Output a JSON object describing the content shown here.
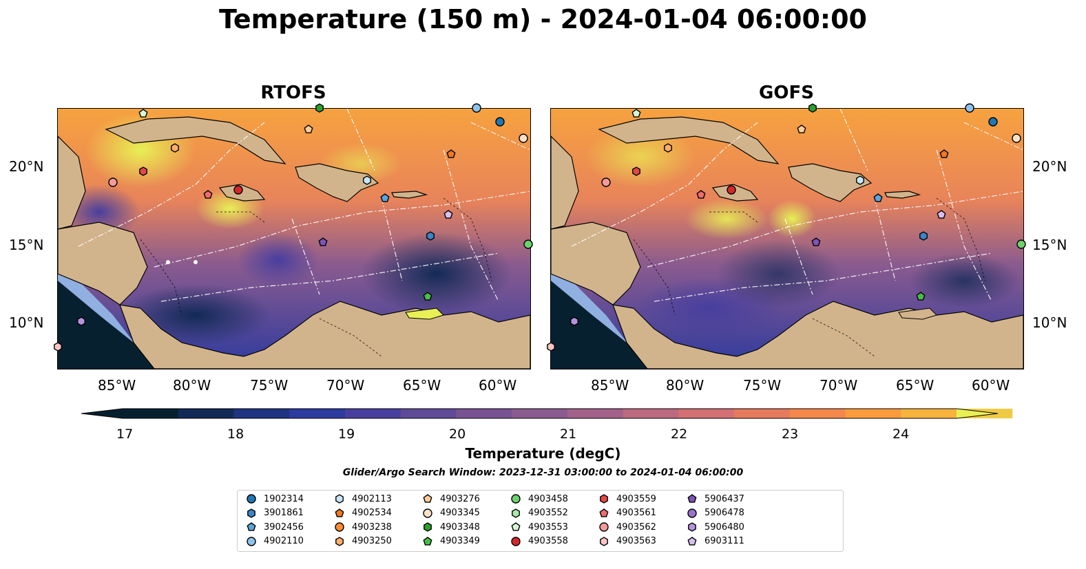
{
  "title": "Temperature (150 m) - 2024-01-04 06:00:00",
  "panels": [
    {
      "title": "RTOFS"
    },
    {
      "title": "GOFS"
    }
  ],
  "lon_ticks": [
    "85°W",
    "80°W",
    "75°W",
    "70°W",
    "65°W",
    "60°W"
  ],
  "lat_ticks": [
    "20°N",
    "15°N",
    "10°N"
  ],
  "colorbar": {
    "ticks": [
      "17",
      "18",
      "19",
      "20",
      "21",
      "22",
      "23",
      "24"
    ],
    "label": "Temperature (degC)",
    "colors": [
      "#07202f",
      "#122a56",
      "#1e3382",
      "#2d3a9e",
      "#473f9e",
      "#5f4a98",
      "#775393",
      "#8a5b8f",
      "#a2628a",
      "#bb6a80",
      "#d27073",
      "#e57b5d",
      "#f3884a",
      "#fa9b3d",
      "#f7b33e",
      "#efcb45",
      "#e8f055"
    ]
  },
  "search_window": "Glider/Argo Search Window: 2023-12-31 03:00:00 to 2024-01-04 06:00:00",
  "colors": {
    "land": "#d2b48c",
    "shelf": "#8fb0e0",
    "deep": "#07202f"
  },
  "legend": [
    {
      "id": "1902314",
      "color": "#1f77b4",
      "shape": "circle"
    },
    {
      "id": "3901861",
      "color": "#3a86c8",
      "shape": "hexagon"
    },
    {
      "id": "3902456",
      "color": "#5aa5dc",
      "shape": "pentagon"
    },
    {
      "id": "4902110",
      "color": "#8cc3ef",
      "shape": "circle"
    },
    {
      "id": "4902113",
      "color": "#c9e6fb",
      "shape": "hexagon"
    },
    {
      "id": "4902534",
      "color": "#f07820",
      "shape": "pentagon"
    },
    {
      "id": "4903238",
      "color": "#ff8c2e",
      "shape": "circle"
    },
    {
      "id": "4903250",
      "color": "#ffae6b",
      "shape": "hexagon"
    },
    {
      "id": "4903276",
      "color": "#ffcd9a",
      "shape": "pentagon"
    },
    {
      "id": "4903345",
      "color": "#fde2c8",
      "shape": "circle"
    },
    {
      "id": "4903348",
      "color": "#2ca02c",
      "shape": "hexagon"
    },
    {
      "id": "4903349",
      "color": "#48be48",
      "shape": "pentagon"
    },
    {
      "id": "4903458",
      "color": "#6cd06c",
      "shape": "circle"
    },
    {
      "id": "4903552",
      "color": "#a8e8a8",
      "shape": "hexagon"
    },
    {
      "id": "4903553",
      "color": "#d6f7d6",
      "shape": "pentagon"
    },
    {
      "id": "4903558",
      "color": "#d62728",
      "shape": "circle"
    },
    {
      "id": "4903559",
      "color": "#e24848",
      "shape": "hexagon"
    },
    {
      "id": "4903561",
      "color": "#ee6c6c",
      "shape": "pentagon"
    },
    {
      "id": "4903562",
      "color": "#f49a9a",
      "shape": "circle"
    },
    {
      "id": "4903563",
      "color": "#f8c4c4",
      "shape": "hexagon"
    },
    {
      "id": "5906437",
      "color": "#7b55b8",
      "shape": "pentagon"
    },
    {
      "id": "5906478",
      "color": "#9970cc",
      "shape": "circle"
    },
    {
      "id": "5906480",
      "color": "#b692de",
      "shape": "hexagon"
    },
    {
      "id": "6903111",
      "color": "#d8bff0",
      "shape": "pentagon"
    }
  ]
}
